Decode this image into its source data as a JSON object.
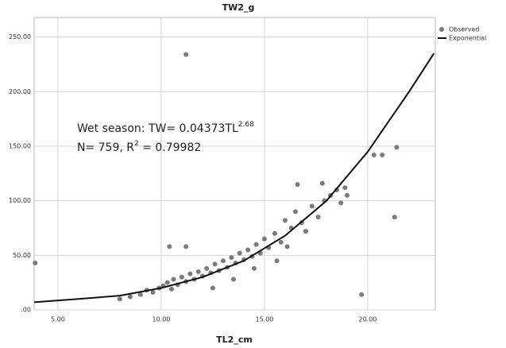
{
  "chart_data": {
    "type": "scatter",
    "title": "TW2_g",
    "x_label": "TL2_cm",
    "xlim": [
      3.85,
      23.27
    ],
    "ylim": [
      0,
      268
    ],
    "xticks": [
      {
        "value": 5,
        "label": "5.00"
      },
      {
        "value": 10,
        "label": "10.00"
      },
      {
        "value": 15,
        "label": "15.00"
      },
      {
        "value": 20,
        "label": "20.00"
      }
    ],
    "yticks": [
      {
        "value": 0,
        "label": ".00"
      },
      {
        "value": 50,
        "label": "50.00"
      },
      {
        "value": 100,
        "label": "100.00"
      },
      {
        "value": 150,
        "label": "150.00"
      },
      {
        "value": 200,
        "label": "200.00"
      },
      {
        "value": 250,
        "label": "250.00"
      }
    ],
    "grid": true,
    "legend": "top-right",
    "annotation": [
      [
        "Wet season: TW= 0.04373TL",
        "2.68"
      ],
      [
        "N= 759,  R",
        "2",
        " = 0.79982"
      ]
    ],
    "series": [
      {
        "name": "Observed",
        "color": "#7b7b7b",
        "x": [
          8.0,
          8.5,
          9.0,
          9.3,
          9.6,
          9.9,
          10.1,
          10.3,
          10.5,
          10.6,
          10.8,
          11.0,
          11.2,
          11.4,
          11.6,
          11.8,
          12.0,
          12.2,
          12.4,
          12.6,
          12.8,
          13.0,
          13.2,
          13.4,
          13.6,
          13.8,
          14.0,
          14.2,
          14.4,
          14.6,
          14.8,
          15.0,
          15.2,
          15.5,
          15.8,
          16.0,
          16.3,
          16.5,
          16.8,
          17.0,
          17.3,
          17.6,
          17.9,
          18.2,
          18.5,
          18.7,
          18.9,
          19.0,
          12.5,
          13.5,
          14.5,
          15.6,
          16.1,
          11.2,
          3.9,
          19.7,
          21.3,
          21.4,
          20.7,
          20.3,
          11.2,
          10.4,
          17.8,
          16.6
        ],
        "values": [
          10,
          12,
          14,
          18,
          16,
          20,
          22,
          25,
          19,
          28,
          23,
          30,
          26,
          33,
          28,
          35,
          31,
          38,
          34,
          42,
          36,
          45,
          39,
          48,
          43,
          52,
          46,
          55,
          49,
          60,
          52,
          65,
          57,
          70,
          62,
          82,
          75,
          90,
          80,
          72,
          95,
          85,
          100,
          105,
          110,
          98,
          112,
          105,
          20,
          28,
          38,
          45,
          58,
          234,
          43,
          14,
          85,
          149,
          142,
          142,
          58,
          58,
          116,
          115
        ]
      },
      {
        "name": "Exponential",
        "color": "#111111",
        "x": [
          3.85,
          6,
          8,
          10,
          12,
          14,
          16,
          18,
          20,
          22,
          23.2
        ],
        "values": [
          7,
          10,
          13,
          20,
          30,
          45,
          68,
          100,
          145,
          200,
          235
        ]
      }
    ]
  }
}
